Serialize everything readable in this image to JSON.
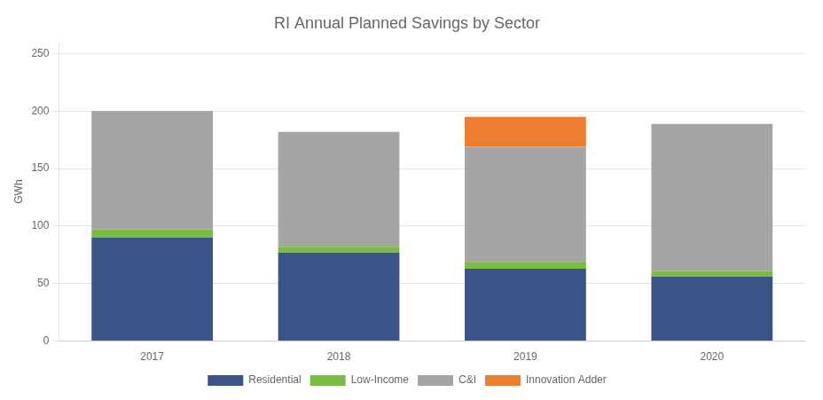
{
  "chart_data": {
    "type": "bar",
    "stacked": true,
    "title": "RI Annual Planned Savings by Sector",
    "categories": [
      "2017",
      "2018",
      "2019",
      "2020"
    ],
    "series": [
      {
        "name": "Residential",
        "color": "#3B5487",
        "values": [
          90,
          77,
          63,
          56
        ]
      },
      {
        "name": "Low-Income",
        "color": "#7BBB3F",
        "values": [
          7,
          5,
          6,
          5
        ]
      },
      {
        "name": "C&I",
        "color": "#A5A5A5",
        "values": [
          103,
          100,
          100,
          128
        ]
      },
      {
        "name": "Innovation Adder",
        "color": "#ED7D31",
        "values": [
          0,
          0,
          26,
          0
        ]
      }
    ],
    "ylabel": "GWh",
    "ylim": [
      0,
      260
    ],
    "yticks": [
      0,
      50,
      100,
      150,
      200,
      250
    ],
    "grid": true,
    "legend": "bottom"
  }
}
